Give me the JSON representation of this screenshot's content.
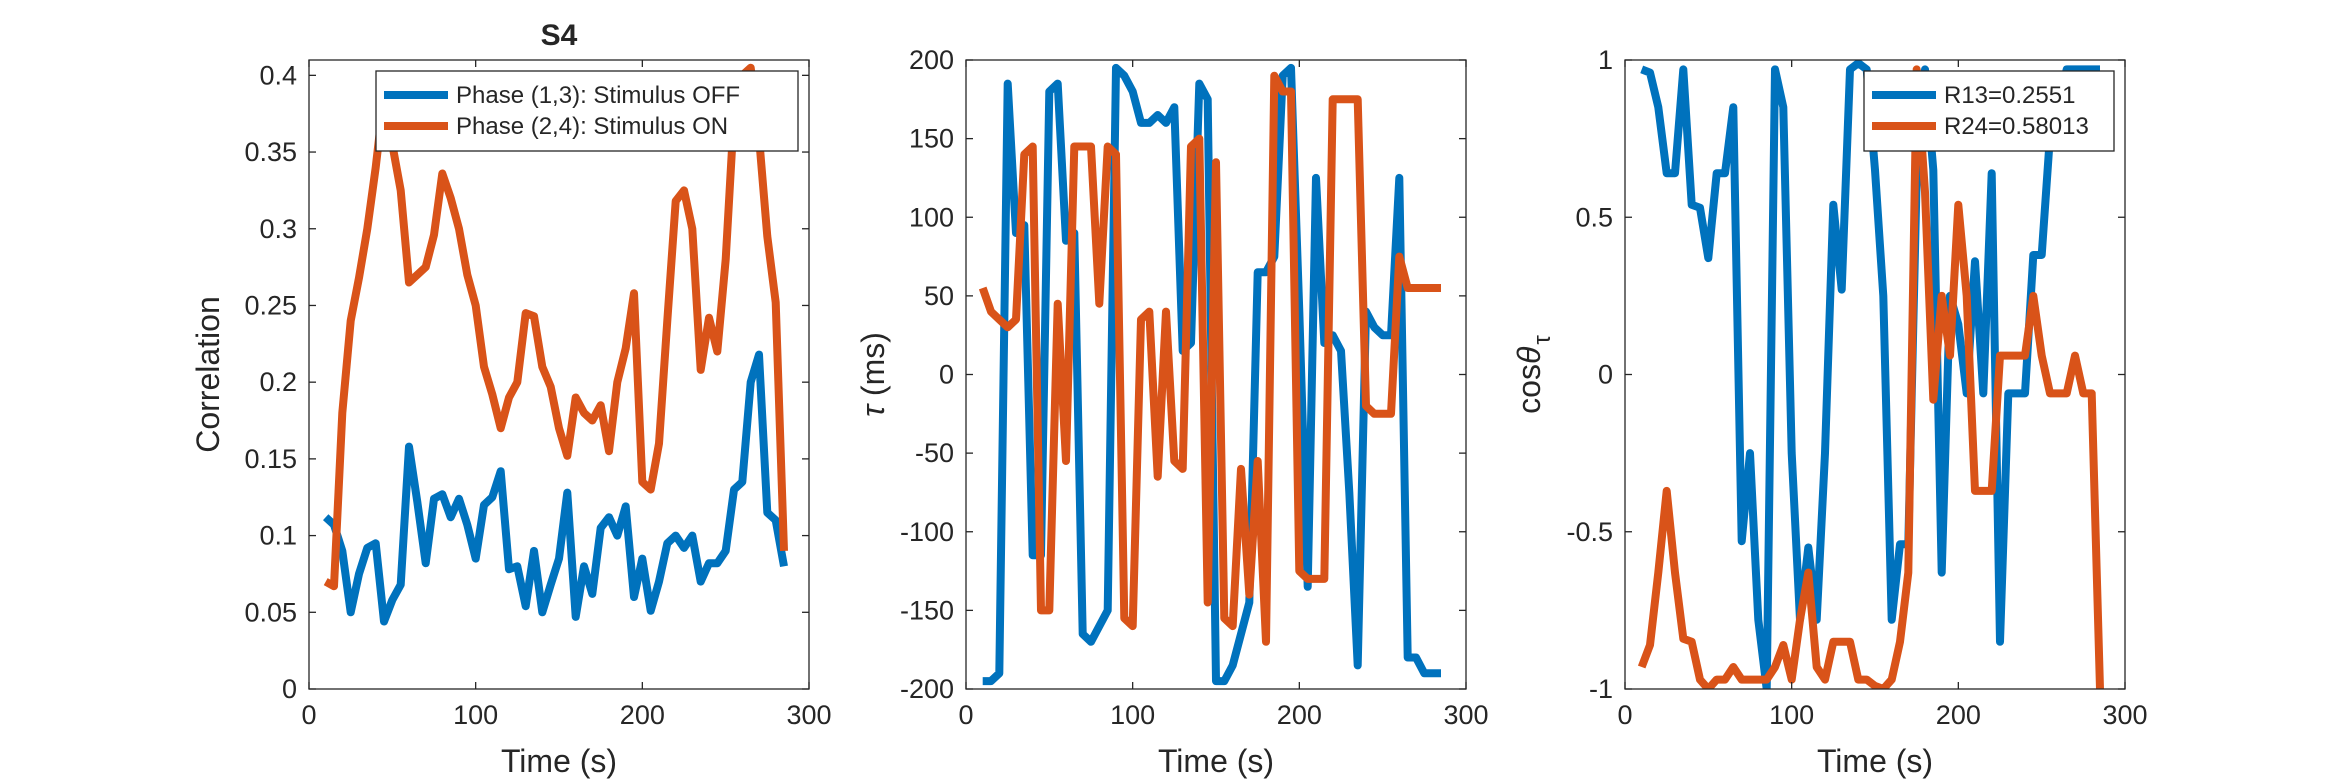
{
  "colors": {
    "blue": "#0072BD",
    "orange": "#D95319",
    "axis": "#262626"
  },
  "chart_data": [
    {
      "type": "line",
      "title": "S4",
      "xlabel": "Time (s)",
      "ylabel": "Correlation",
      "ylabel_rich": null,
      "xlim": [
        0,
        300
      ],
      "ylim": [
        0,
        0.41
      ],
      "xticks": [
        0,
        100,
        200,
        300
      ],
      "xtick_labels": [
        "0",
        "100",
        "200",
        "300"
      ],
      "yticks": [
        0,
        0.05,
        0.1,
        0.15,
        0.2,
        0.25,
        0.3,
        0.35,
        0.4
      ],
      "ytick_labels": [
        "0",
        "0.05",
        "0.1",
        "0.15",
        "0.2",
        "0.25",
        "0.3",
        "0.35",
        "0.4"
      ],
      "legend_position": "top-right",
      "series": [
        {
          "name": "Phase (1,3): Stimulus OFF",
          "color": "#0072BD",
          "x": [
            10,
            15,
            20,
            25,
            30,
            35,
            40,
            45,
            50,
            55,
            60,
            65,
            70,
            75,
            80,
            85,
            90,
            95,
            100,
            105,
            110,
            115,
            120,
            125,
            130,
            135,
            140,
            145,
            150,
            155,
            160,
            165,
            170,
            175,
            180,
            185,
            190,
            195,
            200,
            205,
            210,
            215,
            220,
            225,
            230,
            235,
            240,
            245,
            250,
            255,
            260,
            265,
            270,
            275,
            280,
            285
          ],
          "y": [
            0.112,
            0.107,
            0.09,
            0.05,
            0.075,
            0.092,
            0.095,
            0.044,
            0.058,
            0.068,
            0.158,
            0.122,
            0.082,
            0.124,
            0.127,
            0.112,
            0.124,
            0.107,
            0.085,
            0.12,
            0.125,
            0.142,
            0.078,
            0.08,
            0.054,
            0.09,
            0.05,
            0.068,
            0.085,
            0.128,
            0.047,
            0.08,
            0.062,
            0.105,
            0.112,
            0.1,
            0.119,
            0.06,
            0.085,
            0.051,
            0.07,
            0.095,
            0.1,
            0.092,
            0.1,
            0.07,
            0.082,
            0.082,
            0.09,
            0.13,
            0.135,
            0.2,
            0.218,
            0.115,
            0.11,
            0.08
          ]
        },
        {
          "name": "Phase (2,4): Stimulus ON",
          "color": "#D95319",
          "x": [
            10,
            15,
            20,
            25,
            30,
            35,
            40,
            45,
            50,
            55,
            60,
            65,
            70,
            75,
            80,
            85,
            90,
            95,
            100,
            105,
            110,
            115,
            120,
            125,
            130,
            135,
            140,
            145,
            150,
            155,
            160,
            165,
            170,
            175,
            180,
            185,
            190,
            195,
            200,
            205,
            210,
            215,
            220,
            225,
            230,
            235,
            240,
            245,
            250,
            255,
            260,
            265,
            270,
            275,
            280,
            285
          ],
          "y": [
            0.07,
            0.067,
            0.18,
            0.24,
            0.268,
            0.3,
            0.34,
            0.387,
            0.355,
            0.325,
            0.265,
            0.27,
            0.275,
            0.296,
            0.336,
            0.32,
            0.3,
            0.27,
            0.25,
            0.21,
            0.192,
            0.17,
            0.19,
            0.2,
            0.245,
            0.243,
            0.21,
            0.197,
            0.17,
            0.152,
            0.19,
            0.18,
            0.175,
            0.185,
            0.155,
            0.2,
            0.222,
            0.258,
            0.135,
            0.13,
            0.16,
            0.24,
            0.318,
            0.325,
            0.3,
            0.208,
            0.242,
            0.22,
            0.28,
            0.375,
            0.4,
            0.405,
            0.36,
            0.295,
            0.252,
            0.09
          ]
        }
      ]
    },
    {
      "type": "line",
      "title": "",
      "xlabel": "Time (s)",
      "ylabel": "",
      "ylabel_rich": {
        "symbol": "τ",
        "rest": " (ms)"
      },
      "xlim": [
        0,
        300
      ],
      "ylim": [
        -200,
        200
      ],
      "xticks": [
        0,
        100,
        200,
        300
      ],
      "xtick_labels": [
        "0",
        "100",
        "200",
        "300"
      ],
      "yticks": [
        -200,
        -150,
        -100,
        -50,
        0,
        50,
        100,
        150,
        200
      ],
      "ytick_labels": [
        "-200",
        "-150",
        "-100",
        "-50",
        "0",
        "50",
        "100",
        "150",
        "200"
      ],
      "legend_position": "none",
      "series": [
        {
          "color": "#0072BD",
          "x": [
            10,
            15,
            20,
            25,
            30,
            35,
            40,
            45,
            50,
            55,
            60,
            65,
            70,
            75,
            80,
            85,
            90,
            95,
            100,
            105,
            110,
            115,
            120,
            125,
            130,
            135,
            140,
            145,
            150,
            155,
            160,
            165,
            170,
            175,
            180,
            185,
            190,
            195,
            200,
            205,
            210,
            215,
            220,
            225,
            230,
            235,
            240,
            245,
            250,
            255,
            260,
            265,
            270,
            275,
            280,
            285
          ],
          "y": [
            -195,
            -195,
            -190,
            185,
            90,
            95,
            -115,
            -115,
            180,
            185,
            85,
            90,
            -165,
            -170,
            -160,
            -150,
            195,
            190,
            180,
            160,
            160,
            165,
            160,
            170,
            15,
            20,
            185,
            175,
            -195,
            -195,
            -185,
            -165,
            -145,
            65,
            65,
            75,
            190,
            195,
            40,
            -135,
            125,
            20,
            25,
            15,
            -75,
            -185,
            40,
            30,
            25,
            25,
            125,
            -180,
            -180,
            -190,
            -190,
            -190
          ]
        },
        {
          "color": "#D95319",
          "x": [
            10,
            15,
            20,
            25,
            30,
            35,
            40,
            45,
            50,
            55,
            60,
            65,
            70,
            75,
            80,
            85,
            90,
            95,
            100,
            105,
            110,
            115,
            120,
            125,
            130,
            135,
            140,
            145,
            150,
            155,
            160,
            165,
            170,
            175,
            180,
            185,
            190,
            195,
            200,
            205,
            210,
            215,
            220,
            225,
            230,
            235,
            240,
            245,
            250,
            255,
            260,
            265,
            270,
            275,
            280,
            285
          ],
          "y": [
            55,
            40,
            35,
            30,
            35,
            140,
            145,
            -150,
            -150,
            45,
            -55,
            145,
            145,
            145,
            45,
            145,
            140,
            -155,
            -160,
            35,
            40,
            -65,
            40,
            -55,
            -60,
            145,
            150,
            -145,
            135,
            -155,
            -160,
            -60,
            -140,
            -55,
            -170,
            190,
            180,
            180,
            -125,
            -130,
            -130,
            -130,
            175,
            175,
            175,
            175,
            -20,
            -25,
            -25,
            -25,
            75,
            55,
            55,
            55,
            55,
            55
          ]
        }
      ]
    },
    {
      "type": "line",
      "title": "",
      "xlabel": "Time (s)",
      "ylabel": "",
      "ylabel_rich": {
        "prefix": "cos",
        "symbol": "θ",
        "sub": "τ"
      },
      "xlim": [
        0,
        300
      ],
      "ylim": [
        -1,
        1
      ],
      "xticks": [
        0,
        100,
        200,
        300
      ],
      "xtick_labels": [
        "0",
        "100",
        "200",
        "300"
      ],
      "yticks": [
        -1,
        -0.5,
        0,
        0.5,
        1
      ],
      "ytick_labels": [
        "-1",
        "-0.5",
        "0",
        "0.5",
        "1"
      ],
      "legend_position": "top-right",
      "series": [
        {
          "name": "R13=0.2551",
          "color": "#0072BD",
          "x": [
            10,
            15,
            20,
            25,
            30,
            35,
            40,
            45,
            50,
            55,
            60,
            65,
            70,
            75,
            80,
            85,
            90,
            95,
            100,
            105,
            110,
            115,
            120,
            125,
            130,
            135,
            140,
            145,
            150,
            155,
            160,
            165,
            170,
            175,
            180,
            185,
            190,
            195,
            200,
            205,
            210,
            215,
            220,
            225,
            230,
            235,
            240,
            245,
            250,
            255,
            260,
            265,
            270,
            275,
            280,
            285
          ],
          "y": [
            0.97,
            0.96,
            0.85,
            0.64,
            0.64,
            0.97,
            0.54,
            0.53,
            0.37,
            0.64,
            0.64,
            0.85,
            -0.53,
            -0.25,
            -0.78,
            -1.0,
            0.97,
            0.85,
            -0.25,
            -0.78,
            -0.55,
            -0.78,
            -0.25,
            0.54,
            0.27,
            0.97,
            0.99,
            0.97,
            0.65,
            0.25,
            -0.78,
            -0.54,
            -0.54,
            0.63,
            0.97,
            0.65,
            -0.63,
            0.25,
            0.16,
            -0.06,
            0.36,
            -0.06,
            0.64,
            -0.85,
            -0.06,
            -0.06,
            -0.06,
            0.38,
            0.38,
            0.76,
            0.86,
            0.97,
            0.97,
            0.97,
            0.97,
            0.97
          ]
        },
        {
          "name": "R24=0.58013",
          "color": "#D95319",
          "x": [
            10,
            15,
            20,
            25,
            30,
            35,
            40,
            45,
            50,
            55,
            60,
            65,
            70,
            75,
            80,
            85,
            90,
            95,
            100,
            105,
            110,
            115,
            120,
            125,
            130,
            135,
            140,
            145,
            150,
            155,
            160,
            165,
            170,
            175,
            180,
            185,
            190,
            195,
            200,
            205,
            210,
            215,
            220,
            225,
            230,
            235,
            240,
            245,
            250,
            255,
            260,
            265,
            270,
            275,
            280,
            285
          ],
          "y": [
            -0.93,
            -0.86,
            -0.63,
            -0.37,
            -0.63,
            -0.84,
            -0.85,
            -0.97,
            -1.0,
            -0.97,
            -0.97,
            -0.93,
            -0.97,
            -0.97,
            -0.97,
            -0.97,
            -0.93,
            -0.86,
            -0.97,
            -0.78,
            -0.63,
            -0.93,
            -0.97,
            -0.85,
            -0.85,
            -0.85,
            -0.97,
            -0.97,
            -0.99,
            -1.0,
            -0.97,
            -0.85,
            -0.63,
            0.97,
            0.58,
            -0.08,
            0.25,
            0.06,
            0.54,
            0.25,
            -0.37,
            -0.37,
            -0.37,
            0.06,
            0.06,
            0.06,
            0.06,
            0.25,
            0.06,
            -0.06,
            -0.06,
            -0.06,
            0.06,
            -0.06,
            -0.06,
            -1.0
          ]
        }
      ]
    }
  ]
}
